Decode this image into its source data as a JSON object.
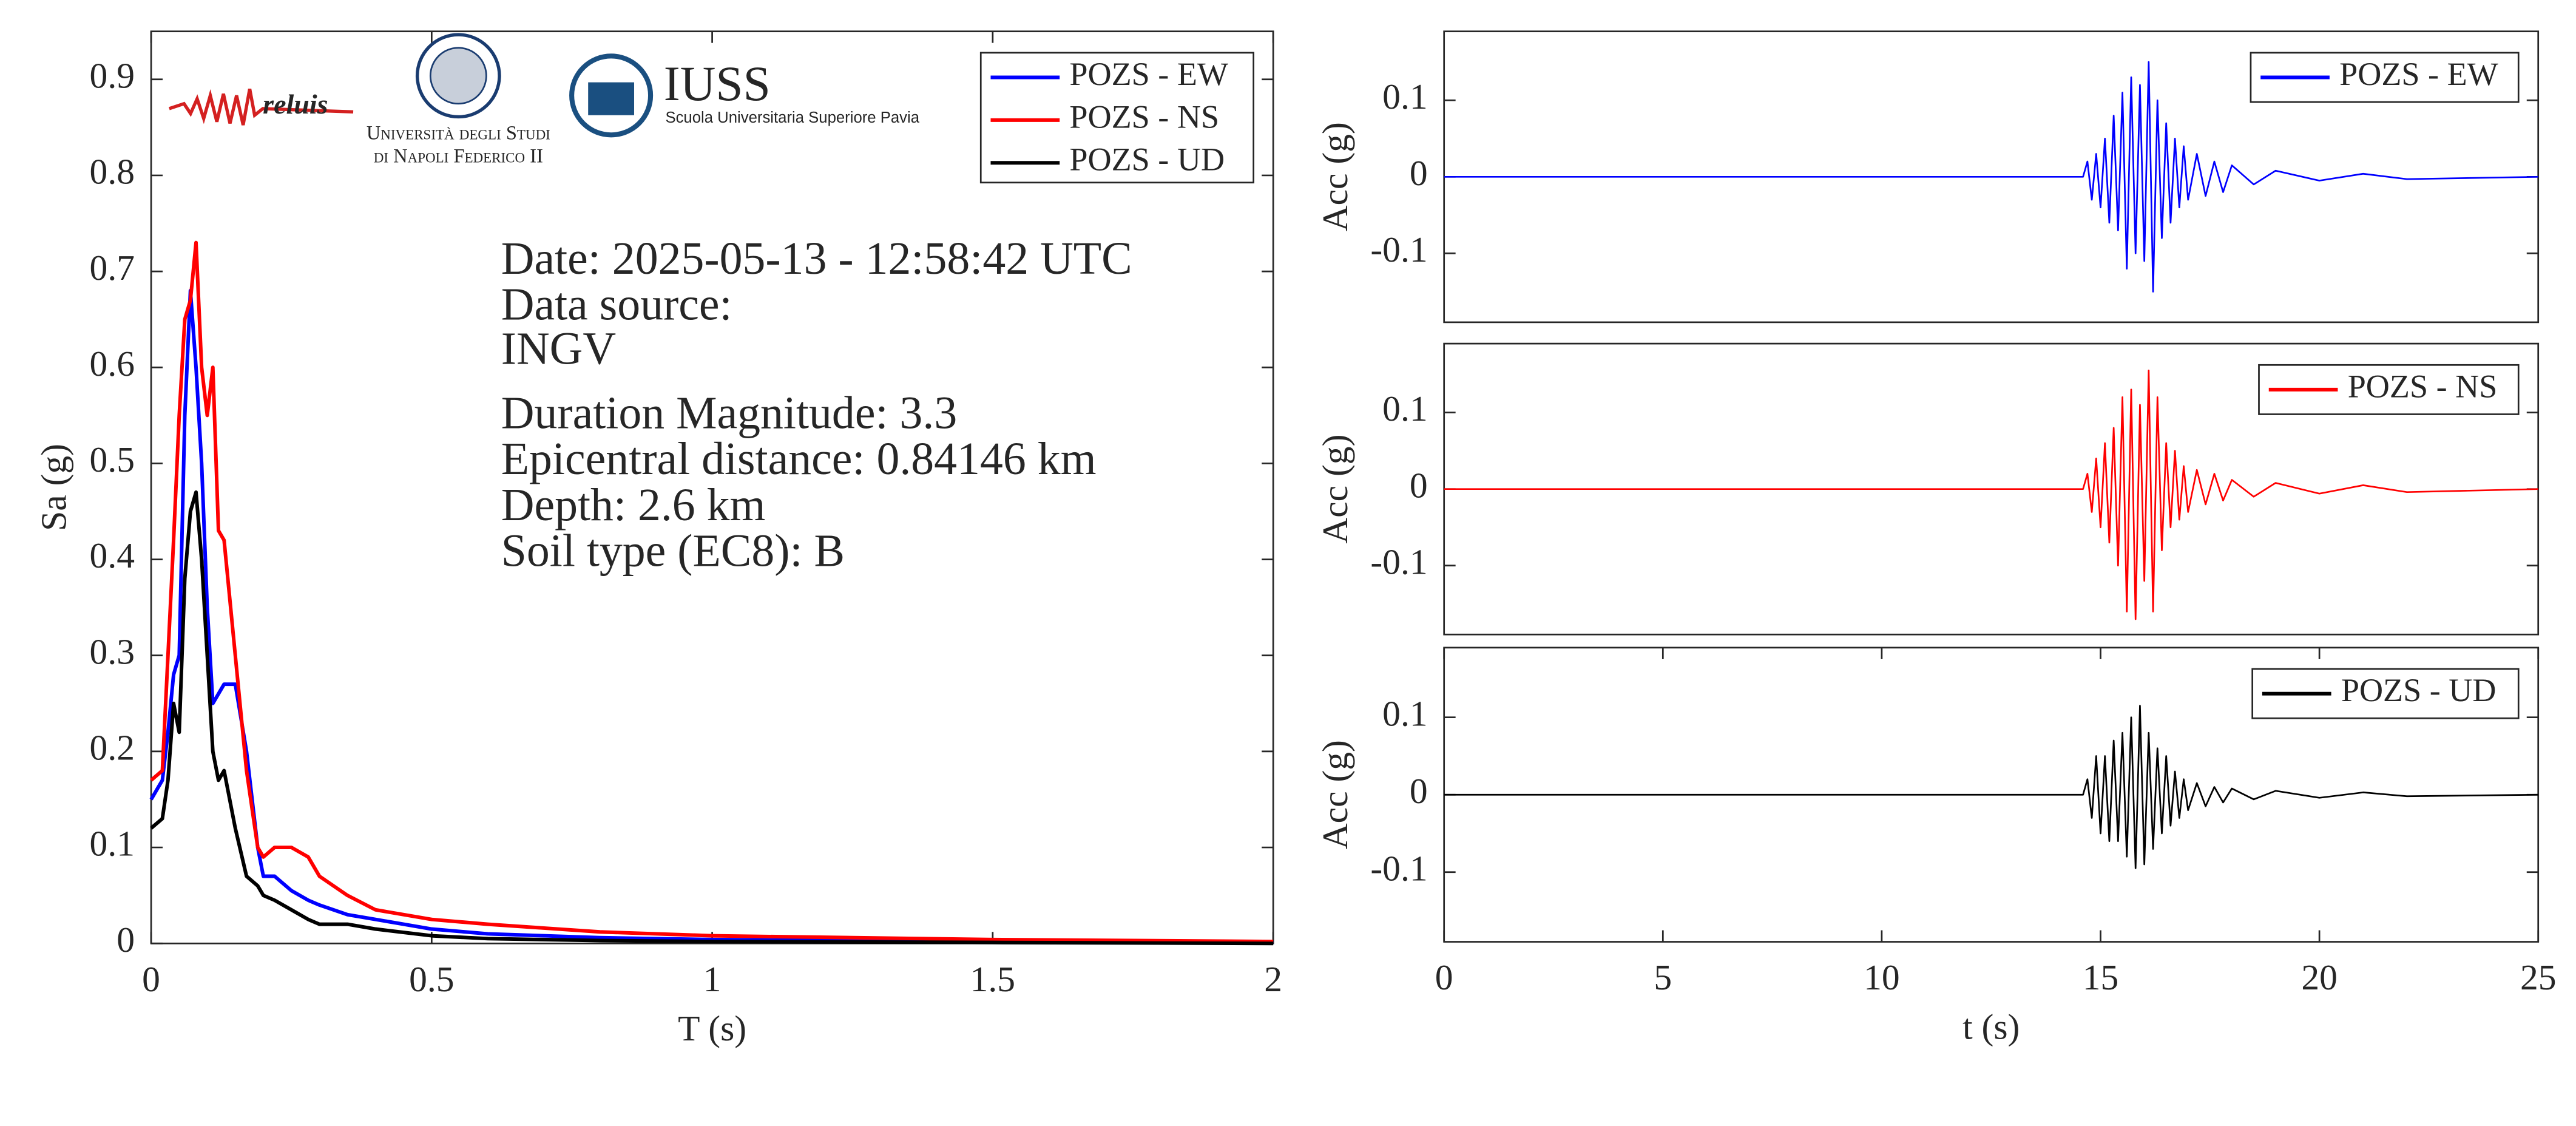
{
  "logos": {
    "reluis": "reluis",
    "unina": [
      "Università degli Studi",
      "di Napoli Federico II"
    ],
    "iuss": "IUSS",
    "iuss_sub": "Scuola Universitaria Superiore Pavia"
  },
  "chart_data": [
    {
      "type": "line",
      "xlabel": "T (s)",
      "ylabel": "Sa (g)",
      "xlim": [
        0,
        2
      ],
      "xticks": [
        0,
        0.5,
        1,
        1.5,
        2
      ],
      "ylim": [
        0,
        0.95
      ],
      "yticks": [
        0,
        0.1,
        0.2,
        0.3,
        0.4,
        0.5,
        0.6,
        0.7,
        0.8,
        0.9
      ],
      "grid": false,
      "legend": "upper right",
      "annotations": [
        "Date: 2025-05-13 - 12:58:42 UTC",
        "Data source:",
        "INGV",
        "Duration Magnitude: 3.3",
        "Epicentral distance: 0.84146 km",
        "Depth: 2.6 km",
        "Soil type (EC8): B"
      ],
      "x": [
        0,
        0.02,
        0.03,
        0.04,
        0.05,
        0.06,
        0.07,
        0.08,
        0.09,
        0.1,
        0.11,
        0.12,
        0.13,
        0.15,
        0.17,
        0.19,
        0.2,
        0.22,
        0.25,
        0.28,
        0.3,
        0.35,
        0.4,
        0.5,
        0.6,
        0.8,
        1,
        1.5,
        2
      ],
      "series": [
        {
          "name": "POZS - EW",
          "color": "#0000ff",
          "values": [
            0.15,
            0.17,
            0.22,
            0.28,
            0.3,
            0.55,
            0.68,
            0.6,
            0.5,
            0.35,
            0.25,
            0.26,
            0.27,
            0.27,
            0.2,
            0.1,
            0.07,
            0.07,
            0.055,
            0.045,
            0.04,
            0.03,
            0.025,
            0.015,
            0.01,
            0.006,
            0.004,
            0.002,
            0.001
          ]
        },
        {
          "name": "POZS - NS",
          "color": "#ff0000",
          "values": [
            0.17,
            0.18,
            0.3,
            0.42,
            0.55,
            0.65,
            0.67,
            0.73,
            0.6,
            0.55,
            0.6,
            0.43,
            0.42,
            0.3,
            0.18,
            0.1,
            0.09,
            0.1,
            0.1,
            0.09,
            0.07,
            0.05,
            0.035,
            0.025,
            0.02,
            0.012,
            0.008,
            0.004,
            0.002
          ]
        },
        {
          "name": "POZS - UD",
          "color": "#000000",
          "values": [
            0.12,
            0.13,
            0.17,
            0.25,
            0.22,
            0.38,
            0.45,
            0.47,
            0.4,
            0.3,
            0.2,
            0.17,
            0.18,
            0.12,
            0.07,
            0.06,
            0.05,
            0.045,
            0.035,
            0.025,
            0.02,
            0.02,
            0.015,
            0.008,
            0.005,
            0.003,
            0.002,
            0.001,
            0
          ]
        }
      ]
    },
    {
      "type": "line",
      "ylabel": "Acc (g)",
      "xlim": [
        0,
        25
      ],
      "ylim": [
        -0.19,
        0.19
      ],
      "yticks": [
        -0.1,
        0,
        0.1
      ],
      "grid": false,
      "legend": "upper right",
      "x": [
        0,
        14.6,
        14.7,
        14.8,
        14.9,
        15,
        15.1,
        15.2,
        15.3,
        15.4,
        15.5,
        15.6,
        15.7,
        15.8,
        15.9,
        16,
        16.1,
        16.2,
        16.3,
        16.4,
        16.5,
        16.6,
        16.7,
        16.8,
        16.9,
        17,
        17.2,
        17.4,
        17.6,
        17.8,
        18,
        18.5,
        19,
        20,
        21,
        22,
        25
      ],
      "series": [
        {
          "name": "POZS - EW",
          "color": "#0000ff",
          "values": [
            0,
            0,
            0.02,
            -0.03,
            0.03,
            -0.04,
            0.05,
            -0.06,
            0.08,
            -0.07,
            0.11,
            -0.12,
            0.13,
            -0.1,
            0.12,
            -0.11,
            0.15,
            -0.15,
            0.1,
            -0.08,
            0.07,
            -0.06,
            0.05,
            -0.04,
            0.04,
            -0.03,
            0.03,
            -0.025,
            0.02,
            -0.02,
            0.015,
            -0.01,
            0.008,
            -0.005,
            0.004,
            -0.003,
            0
          ]
        }
      ]
    },
    {
      "type": "line",
      "ylabel": "Acc (g)",
      "xlim": [
        0,
        25
      ],
      "ylim": [
        -0.19,
        0.19
      ],
      "yticks": [
        -0.1,
        0,
        0.1
      ],
      "grid": false,
      "legend": "upper right",
      "x": [
        0,
        14.6,
        14.7,
        14.8,
        14.9,
        15,
        15.1,
        15.2,
        15.3,
        15.4,
        15.5,
        15.6,
        15.7,
        15.8,
        15.9,
        16,
        16.1,
        16.2,
        16.3,
        16.4,
        16.5,
        16.6,
        16.7,
        16.8,
        16.9,
        17,
        17.2,
        17.4,
        17.6,
        17.8,
        18,
        18.5,
        19,
        20,
        21,
        22,
        25
      ],
      "series": [
        {
          "name": "POZS - NS",
          "color": "#ff0000",
          "values": [
            0,
            0,
            0.02,
            -0.03,
            0.04,
            -0.05,
            0.06,
            -0.07,
            0.08,
            -0.1,
            0.12,
            -0.16,
            0.13,
            -0.17,
            0.11,
            -0.12,
            0.155,
            -0.16,
            0.12,
            -0.08,
            0.06,
            -0.05,
            0.05,
            -0.04,
            0.03,
            -0.03,
            0.025,
            -0.02,
            0.02,
            -0.015,
            0.012,
            -0.01,
            0.008,
            -0.006,
            0.005,
            -0.004,
            0
          ]
        }
      ]
    },
    {
      "type": "line",
      "xlabel": "t (s)",
      "ylabel": "Acc (g)",
      "xlim": [
        0,
        25
      ],
      "xticks": [
        0,
        5,
        10,
        15,
        20,
        25
      ],
      "ylim": [
        -0.19,
        0.19
      ],
      "yticks": [
        -0.1,
        0,
        0.1
      ],
      "grid": false,
      "legend": "upper right",
      "x": [
        0,
        14.6,
        14.7,
        14.8,
        14.9,
        15,
        15.1,
        15.2,
        15.3,
        15.4,
        15.5,
        15.6,
        15.7,
        15.8,
        15.9,
        16,
        16.1,
        16.2,
        16.3,
        16.4,
        16.5,
        16.6,
        16.7,
        16.8,
        16.9,
        17,
        17.2,
        17.4,
        17.6,
        17.8,
        18,
        18.5,
        19,
        20,
        21,
        22,
        25
      ],
      "series": [
        {
          "name": "POZS - UD",
          "color": "#000000",
          "values": [
            0,
            0,
            0.02,
            -0.03,
            0.05,
            -0.05,
            0.05,
            -0.06,
            0.07,
            -0.06,
            0.08,
            -0.08,
            0.1,
            -0.095,
            0.115,
            -0.09,
            0.08,
            -0.07,
            0.06,
            -0.05,
            0.05,
            -0.04,
            0.03,
            -0.03,
            0.02,
            -0.02,
            0.015,
            -0.015,
            0.01,
            -0.01,
            0.008,
            -0.006,
            0.005,
            -0.004,
            0.003,
            -0.002,
            0
          ]
        }
      ]
    }
  ]
}
